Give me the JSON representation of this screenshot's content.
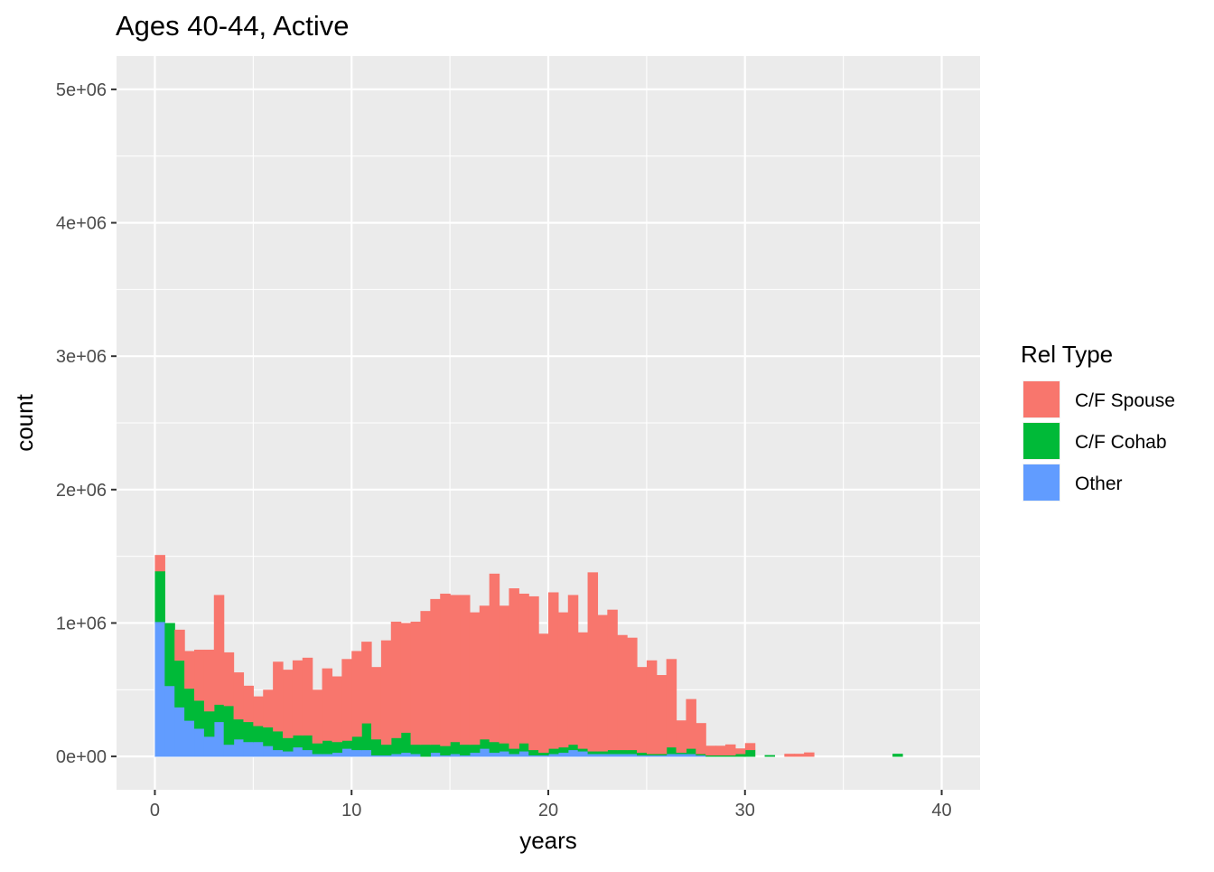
{
  "chart_data": {
    "type": "bar",
    "title": "Ages 40-44, Active",
    "xlabel": "years",
    "ylabel": "count",
    "xlim": [
      -1.95,
      41.95
    ],
    "ylim": [
      -250000,
      5250000
    ],
    "x_ticks": [
      0,
      10,
      20,
      30,
      40
    ],
    "x_tick_labels": [
      "0",
      "10",
      "20",
      "30",
      "40"
    ],
    "x_minor_ticks": [
      5,
      15,
      25,
      35
    ],
    "y_ticks": [
      0,
      1000000,
      2000000,
      3000000,
      4000000,
      5000000
    ],
    "y_tick_labels": [
      "0e+00",
      "1e+06",
      "2e+06",
      "3e+06",
      "4e+06",
      "5e+06"
    ],
    "y_minor_ticks": [
      500000,
      1500000,
      2500000,
      3500000,
      4500000
    ],
    "grid": true,
    "stacked": true,
    "bin_width": 0.5,
    "legend": {
      "title": "Rel Type",
      "position": "right",
      "entries": [
        "C/F Spouse",
        "C/F Cohab",
        "Other"
      ]
    },
    "colors": {
      "C/F Spouse": "#F8766D",
      "C/F Cohab": "#00BA38",
      "Other": "#619CFF",
      "panel": "#EBEBEB",
      "grid": "#FFFFFF"
    },
    "x": [
      0.25,
      0.75,
      1.25,
      1.75,
      2.25,
      2.75,
      3.25,
      3.75,
      4.25,
      4.75,
      5.25,
      5.75,
      6.25,
      6.75,
      7.25,
      7.75,
      8.25,
      8.75,
      9.25,
      9.75,
      10.25,
      10.75,
      11.25,
      11.75,
      12.25,
      12.75,
      13.25,
      13.75,
      14.25,
      14.75,
      15.25,
      15.75,
      16.25,
      16.75,
      17.25,
      17.75,
      18.25,
      18.75,
      19.25,
      19.75,
      20.25,
      20.75,
      21.25,
      21.75,
      22.25,
      22.75,
      23.25,
      23.75,
      24.25,
      24.75,
      25.25,
      25.75,
      26.25,
      26.75,
      27.25,
      27.75,
      28.25,
      28.75,
      29.25,
      29.75,
      30.25,
      30.75,
      31.25,
      31.75,
      32.25,
      32.75,
      33.25,
      33.75,
      34.25,
      34.75,
      35.25,
      35.75,
      36.25,
      36.75,
      37.25,
      37.75,
      38.25,
      38.75,
      39.25,
      39.75
    ],
    "series": [
      {
        "name": "C/F Spouse",
        "values": [
          120000,
          0,
          230000,
          280000,
          380000,
          460000,
          820000,
          400000,
          350000,
          270000,
          220000,
          280000,
          520000,
          510000,
          560000,
          580000,
          400000,
          540000,
          490000,
          610000,
          640000,
          610000,
          540000,
          780000,
          870000,
          820000,
          920000,
          1000000,
          1090000,
          1140000,
          1100000,
          1120000,
          990000,
          1000000,
          1260000,
          1030000,
          1200000,
          1120000,
          1150000,
          890000,
          1170000,
          1010000,
          1120000,
          870000,
          1340000,
          1020000,
          1050000,
          860000,
          840000,
          640000,
          700000,
          590000,
          660000,
          240000,
          370000,
          230000,
          70000,
          70000,
          80000,
          40000,
          50000,
          0,
          0,
          0,
          20000,
          20000,
          30000,
          0,
          0,
          0,
          0,
          0,
          0,
          0,
          0,
          0,
          0,
          0,
          0,
          0
        ]
      },
      {
        "name": "C/F Cohab",
        "values": [
          380000,
          470000,
          350000,
          240000,
          210000,
          190000,
          130000,
          290000,
          150000,
          150000,
          120000,
          140000,
          140000,
          100000,
          90000,
          110000,
          80000,
          100000,
          80000,
          60000,
          100000,
          200000,
          120000,
          80000,
          120000,
          150000,
          70000,
          90000,
          60000,
          70000,
          90000,
          80000,
          60000,
          70000,
          80000,
          60000,
          40000,
          60000,
          40000,
          20000,
          40000,
          40000,
          40000,
          20000,
          20000,
          20000,
          30000,
          30000,
          30000,
          20000,
          10000,
          10000,
          50000,
          10000,
          40000,
          10000,
          10000,
          10000,
          10000,
          20000,
          50000,
          0,
          10000,
          0,
          0,
          0,
          0,
          0,
          0,
          0,
          0,
          0,
          0,
          0,
          0,
          20000,
          0,
          0,
          0,
          0
        ]
      },
      {
        "name": "Other",
        "values": [
          1010000,
          530000,
          370000,
          270000,
          210000,
          150000,
          260000,
          90000,
          130000,
          110000,
          110000,
          80000,
          50000,
          40000,
          70000,
          50000,
          20000,
          20000,
          30000,
          60000,
          50000,
          50000,
          10000,
          10000,
          20000,
          30000,
          20000,
          0,
          30000,
          10000,
          20000,
          10000,
          30000,
          60000,
          30000,
          40000,
          20000,
          40000,
          10000,
          10000,
          20000,
          30000,
          50000,
          40000,
          20000,
          20000,
          20000,
          20000,
          20000,
          10000,
          10000,
          10000,
          20000,
          20000,
          20000,
          10000,
          0,
          0,
          0,
          0,
          0,
          0,
          0,
          0,
          0,
          0,
          0,
          0,
          0,
          0,
          0,
          0,
          0,
          0,
          0,
          0,
          0,
          0,
          0,
          0
        ]
      }
    ]
  }
}
